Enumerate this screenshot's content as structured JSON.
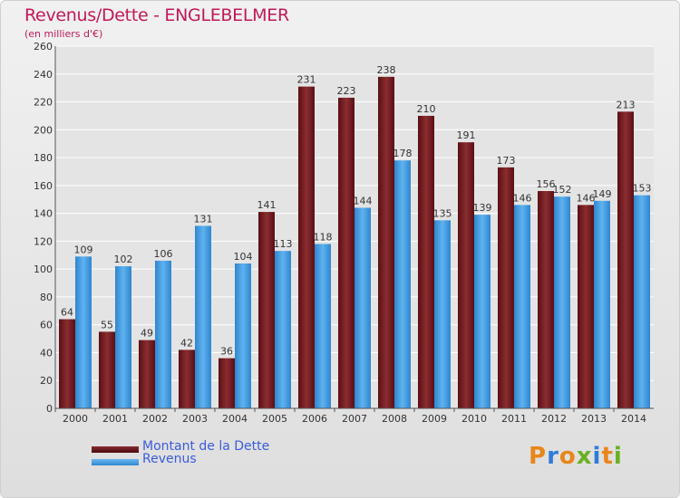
{
  "title": "Revenus/Dette - ENGLEBELMER",
  "subtitle": "(en milliers d'€)",
  "logo": {
    "text": "Proxiti",
    "letters": [
      "P",
      "r",
      "o",
      "x",
      "i",
      "t",
      "i"
    ],
    "colors": [
      "#e8861a",
      "#2e7dd7",
      "#e8861a",
      "#6ab023",
      "#2e7dd7",
      "#e8861a",
      "#6ab023"
    ]
  },
  "chart_data": {
    "type": "bar",
    "categories": [
      "2000",
      "2001",
      "2002",
      "2003",
      "2004",
      "2005",
      "2006",
      "2007",
      "2008",
      "2009",
      "2010",
      "2011",
      "2012",
      "2013",
      "2014"
    ],
    "series": [
      {
        "name": "Montant de la Dette",
        "color": "#7a1f24",
        "values": [
          64,
          55,
          49,
          42,
          36,
          141,
          231,
          223,
          238,
          210,
          191,
          173,
          156,
          146,
          213
        ]
      },
      {
        "name": "Revenus",
        "color": "#4aa3e8",
        "values": [
          109,
          102,
          106,
          131,
          104,
          113,
          118,
          144,
          178,
          135,
          139,
          146,
          152,
          149,
          153
        ]
      }
    ],
    "yticks": [
      0,
      20,
      40,
      60,
      80,
      100,
      120,
      140,
      160,
      180,
      200,
      220,
      240,
      260
    ],
    "ylim": [
      0,
      260
    ],
    "grid": true,
    "legend": "bottom-left"
  }
}
